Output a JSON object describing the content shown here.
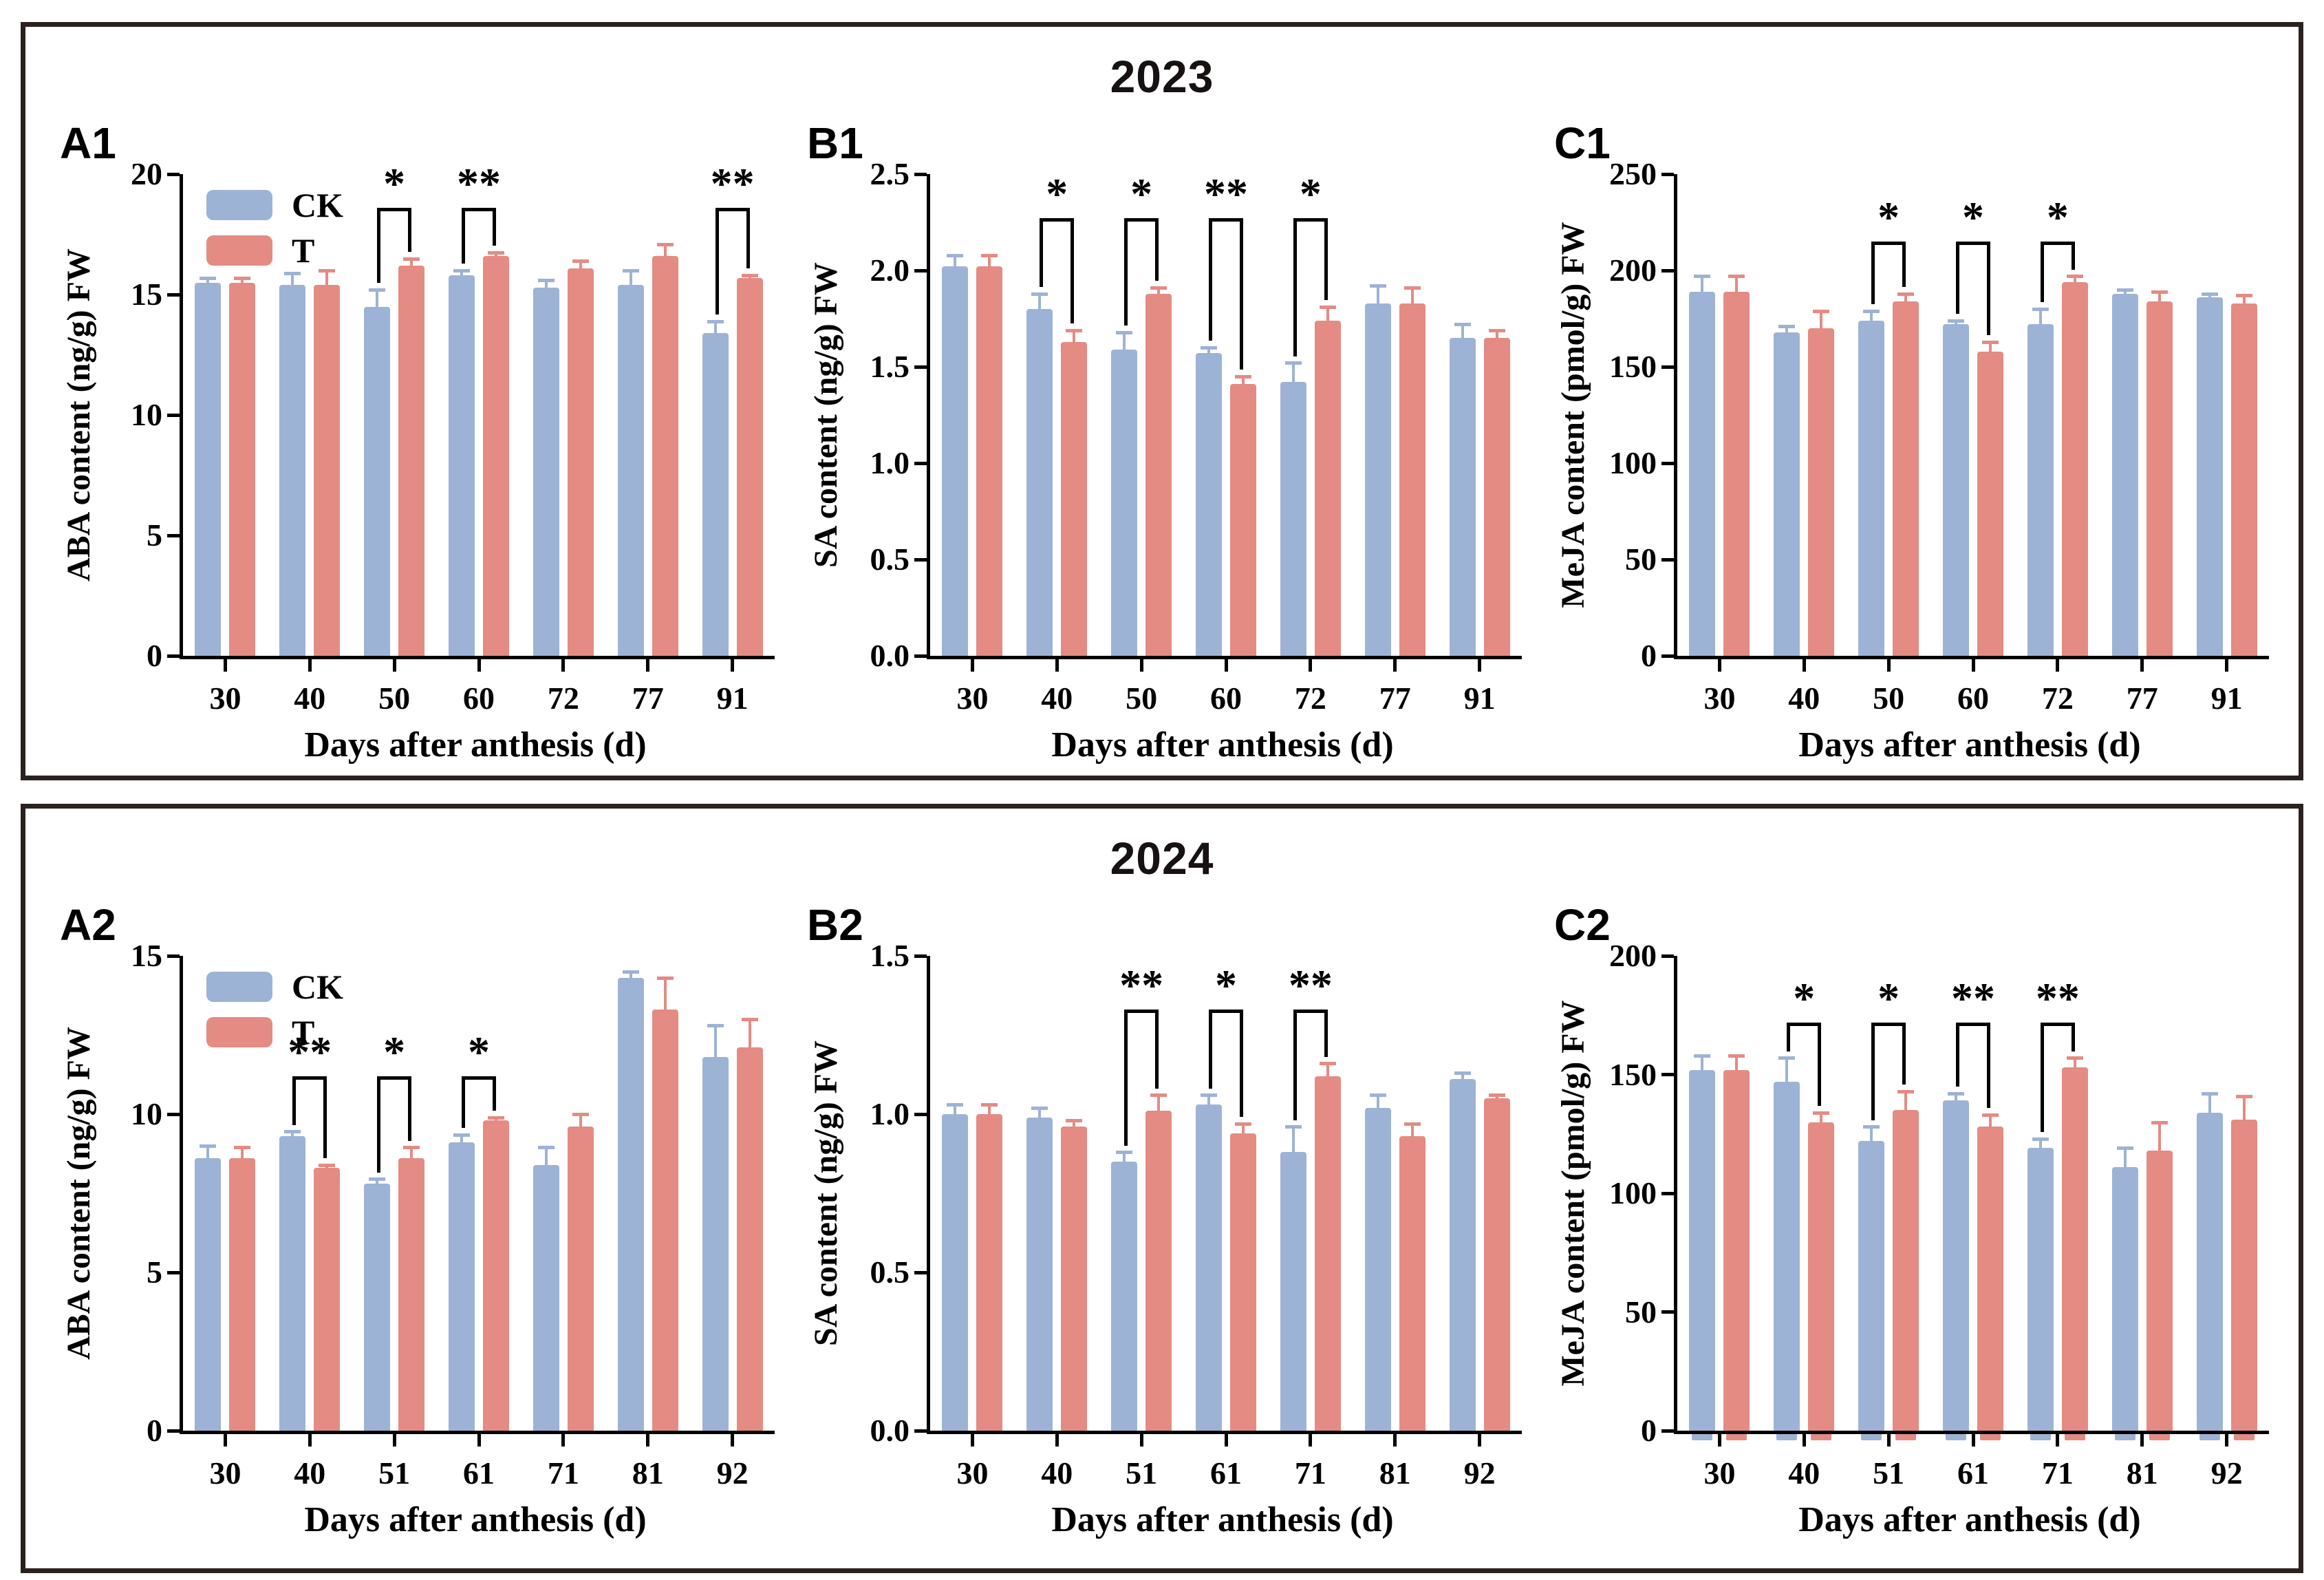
{
  "sections": [
    {
      "year": "2023"
    },
    {
      "year": "2024"
    }
  ],
  "legend": {
    "ck_label": "CK",
    "t_label": "T"
  },
  "colors": {
    "ck_bar": "#9DB3D5",
    "t_bar": "#E48B83",
    "axis": "#000000",
    "box_border": "#2b2220",
    "title": "#171111"
  },
  "chart_data": [
    {
      "type": "bar",
      "panel_label": "A1",
      "year": "2023",
      "ylabel": "ABA content (ng/g) FW",
      "xlabel": "Days after anthesis (d)",
      "categories": [
        "30",
        "40",
        "50",
        "60",
        "72",
        "77",
        "91"
      ],
      "ylim": [
        0,
        20
      ],
      "yticks": [
        "0",
        "5",
        "10",
        "15",
        "20"
      ],
      "series": [
        {
          "name": "CK",
          "values": [
            15.5,
            15.4,
            14.5,
            15.8,
            15.3,
            15.4,
            13.4
          ],
          "errors": [
            0.2,
            0.5,
            0.7,
            0.2,
            0.3,
            0.6,
            0.5
          ]
        },
        {
          "name": "T",
          "values": [
            15.5,
            15.4,
            16.2,
            16.6,
            16.1,
            16.6,
            15.7
          ],
          "errors": [
            0.2,
            0.6,
            0.3,
            0.15,
            0.3,
            0.5,
            0.1
          ]
        }
      ],
      "significance": [
        null,
        null,
        "*",
        "**",
        null,
        null,
        "**"
      ],
      "bracket_top": 18.6,
      "legend": true
    },
    {
      "type": "bar",
      "panel_label": "B1",
      "year": "2023",
      "ylabel": "SA content (ng/g) FW",
      "xlabel": "Days after anthesis (d)",
      "categories": [
        "30",
        "40",
        "50",
        "60",
        "72",
        "77",
        "91"
      ],
      "ylim": [
        0,
        2.5
      ],
      "yticks": [
        "0.0",
        "0.5",
        "1.0",
        "1.5",
        "2.0",
        "2.5"
      ],
      "series": [
        {
          "name": "CK",
          "values": [
            2.02,
            1.8,
            1.59,
            1.57,
            1.42,
            1.83,
            1.65
          ],
          "errors": [
            0.06,
            0.08,
            0.09,
            0.03,
            0.1,
            0.09,
            0.07
          ]
        },
        {
          "name": "T",
          "values": [
            2.02,
            1.63,
            1.88,
            1.41,
            1.74,
            1.83,
            1.65
          ],
          "errors": [
            0.06,
            0.06,
            0.03,
            0.04,
            0.07,
            0.08,
            0.04
          ]
        }
      ],
      "significance": [
        null,
        "*",
        "*",
        "**",
        "*",
        null,
        null
      ],
      "bracket_top": 2.27,
      "legend": false
    },
    {
      "type": "bar",
      "panel_label": "C1",
      "year": "2023",
      "ylabel": "MeJA content (pmol/g) FW",
      "xlabel": "Days after anthesis (d)",
      "categories": [
        "30",
        "40",
        "50",
        "60",
        "72",
        "77",
        "91"
      ],
      "ylim": [
        0,
        250
      ],
      "yticks": [
        "0",
        "50",
        "100",
        "150",
        "200",
        "250"
      ],
      "series": [
        {
          "name": "CK",
          "values": [
            189,
            168,
            174,
            172,
            172,
            188,
            186
          ],
          "errors": [
            8,
            3,
            5,
            2,
            8,
            2,
            2
          ]
        },
        {
          "name": "T",
          "values": [
            189,
            170,
            184,
            158,
            194,
            184,
            183
          ],
          "errors": [
            8,
            9,
            4,
            5,
            3,
            5,
            4
          ]
        }
      ],
      "significance": [
        null,
        null,
        "*",
        "*",
        "*",
        null,
        null
      ],
      "bracket_top": 215,
      "legend": false
    },
    {
      "type": "bar",
      "panel_label": "A2",
      "year": "2024",
      "ylabel": "ABA content (ng/g) FW",
      "xlabel": "Days after anthesis (d)",
      "categories": [
        "30",
        "40",
        "51",
        "61",
        "71",
        "81",
        "92"
      ],
      "ylim": [
        0,
        15
      ],
      "yticks": [
        "0",
        "5",
        "10",
        "15"
      ],
      "series": [
        {
          "name": "CK",
          "values": [
            8.6,
            9.3,
            7.8,
            9.1,
            8.4,
            14.3,
            11.8
          ],
          "errors": [
            0.4,
            0.15,
            0.15,
            0.25,
            0.55,
            0.2,
            1.0
          ]
        },
        {
          "name": "T",
          "values": [
            8.6,
            8.3,
            8.6,
            9.8,
            9.6,
            13.3,
            12.1
          ],
          "errors": [
            0.35,
            0.1,
            0.35,
            0.1,
            0.4,
            1.0,
            0.9
          ]
        }
      ],
      "significance": [
        null,
        "**",
        "*",
        "*",
        null,
        null,
        null
      ],
      "bracket_top": 11.2,
      "legend": true
    },
    {
      "type": "bar",
      "panel_label": "B2",
      "year": "2024",
      "ylabel": "SA content (ng/g) FW",
      "xlabel": "Days after anthesis (d)",
      "categories": [
        "30",
        "40",
        "51",
        "61",
        "71",
        "81",
        "92"
      ],
      "ylim": [
        0,
        1.5
      ],
      "yticks": [
        "0.0",
        "0.5",
        "1.0",
        "1.5"
      ],
      "series": [
        {
          "name": "CK",
          "values": [
            1.0,
            0.99,
            0.85,
            1.03,
            0.88,
            1.02,
            1.11
          ],
          "errors": [
            0.03,
            0.03,
            0.03,
            0.03,
            0.08,
            0.04,
            0.02
          ]
        },
        {
          "name": "T",
          "values": [
            1.0,
            0.96,
            1.01,
            0.94,
            1.12,
            0.93,
            1.05
          ],
          "errors": [
            0.03,
            0.02,
            0.05,
            0.03,
            0.04,
            0.04,
            0.01
          ]
        }
      ],
      "significance": [
        null,
        null,
        "**",
        "*",
        "**",
        null,
        null
      ],
      "bracket_top": 1.33,
      "legend": false
    },
    {
      "type": "bar",
      "panel_label": "C2",
      "year": "2024",
      "ylabel": "MeJA content (pmol/g) FW",
      "xlabel": "Days after anthesis (d)",
      "categories": [
        "30",
        "40",
        "51",
        "61",
        "71",
        "81",
        "92"
      ],
      "ylim": [
        0,
        200
      ],
      "yticks": [
        "0",
        "50",
        "100",
        "150",
        "200"
      ],
      "series": [
        {
          "name": "CK",
          "values": [
            152,
            147,
            122,
            139,
            119,
            111,
            134
          ],
          "errors": [
            6,
            10,
            6,
            3,
            4,
            8,
            8
          ]
        },
        {
          "name": "T",
          "values": [
            152,
            130,
            135,
            128,
            153,
            118,
            131
          ],
          "errors": [
            6,
            4,
            8,
            5,
            4,
            12,
            10
          ]
        }
      ],
      "significance": [
        null,
        "*",
        "*",
        "**",
        "**",
        null,
        null
      ],
      "bracket_top": 172,
      "legend": false
    }
  ]
}
